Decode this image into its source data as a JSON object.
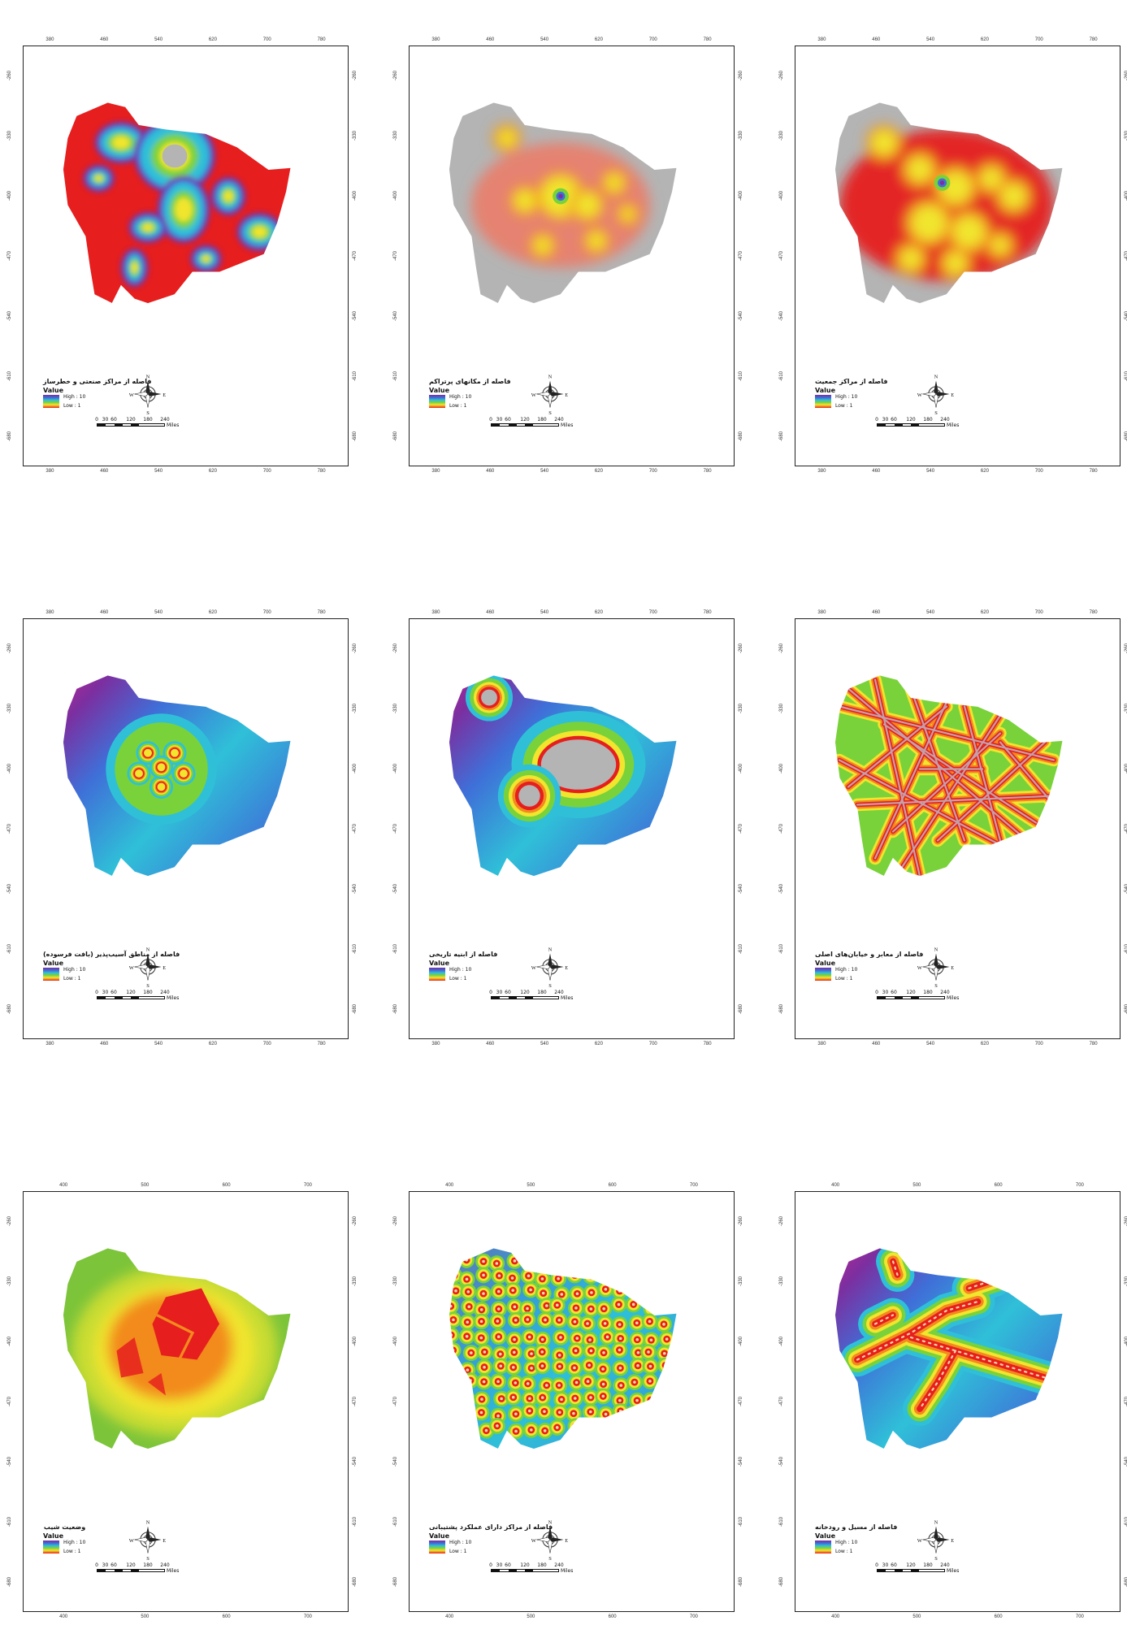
{
  "figure": {
    "panels": [
      {
        "id": "industrial",
        "title": "فاصله از مراکز صنعتی و خطرساز",
        "style": "blobs-red"
      },
      {
        "id": "congested",
        "title": "فاصله از مکانهای پرتراکم",
        "style": "heat-gray"
      },
      {
        "id": "population",
        "title": "فاصله از مراکز جمعیت",
        "style": "heat-red"
      },
      {
        "id": "vulnerable",
        "title": "فاصله از مناطق آسیب‌پذیر (بافت فرسوده)",
        "style": "rings-five"
      },
      {
        "id": "historic",
        "title": "فاصله از ابنیه تاریخی",
        "style": "rings-two"
      },
      {
        "id": "roads",
        "title": "فاصله از معابر و خیابان‌های اصلی",
        "style": "roads"
      },
      {
        "id": "slope",
        "title": "وضعیت شیب",
        "style": "slope"
      },
      {
        "id": "support",
        "title": "فاصله از مراکز دارای عملکرد پشتیبانی",
        "style": "dots"
      },
      {
        "id": "flood",
        "title": "فاصله از مسیل و رودخانه",
        "style": "river"
      }
    ],
    "legend": {
      "value_label": "Value",
      "high_label": "High : 10",
      "low_label": "Low : 1",
      "high_value": 10,
      "low_value": 1,
      "ramp_colors": [
        "#7b2fa0",
        "#3f6fd8",
        "#2fc0d8",
        "#79d23a",
        "#f1e52e",
        "#f28a1e",
        "#e61e1e"
      ]
    },
    "north_arrow": {
      "n": "N",
      "s": "S",
      "e": "E",
      "w": "W",
      "icon": "compass-rose-icon"
    },
    "scale_bar": {
      "labels": [
        "0",
        "30",
        "60",
        "120",
        "180",
        "240"
      ],
      "unit": "Miles"
    },
    "x_ticks": [
      "380",
      "460",
      "540",
      "620",
      "700",
      "780"
    ],
    "x_ticks_bottom_row": [
      "400",
      "500",
      "600",
      "700"
    ],
    "y_ticks": [
      "-260",
      "-330",
      "-400",
      "-470",
      "-540",
      "-610",
      "-680"
    ],
    "colors": {
      "red": "#e61e1e",
      "gray": "#b4b4b4",
      "blue": "#3f6fd8",
      "cyan": "#2fc0d8",
      "green": "#79d23a",
      "yellow": "#f1e52e",
      "orange": "#f28a1e",
      "magenta": "#e0208c",
      "purple": "#7b2fa0"
    }
  }
}
